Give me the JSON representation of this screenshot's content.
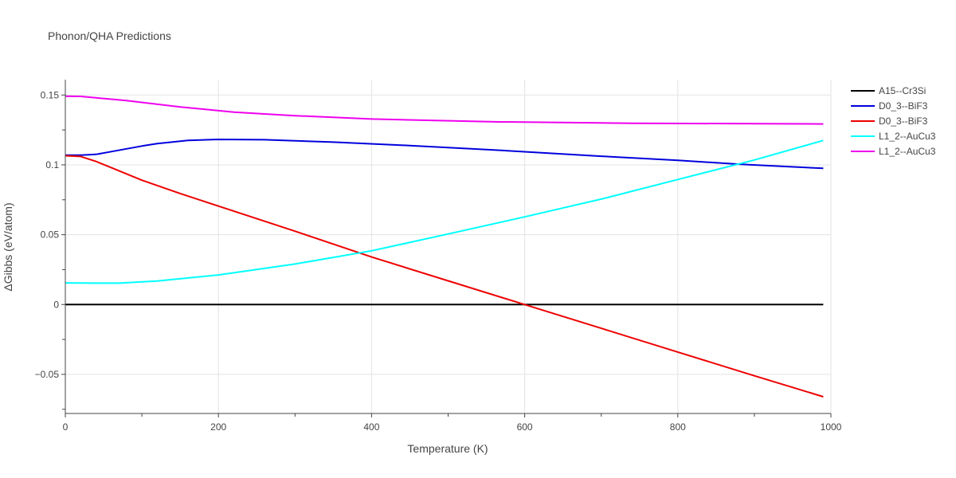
{
  "chart_data": {
    "type": "line",
    "title": "Phonon/QHA Predictions",
    "xlabel": "Temperature (K)",
    "ylabel": "ΔGibbs (eV/atom)",
    "xlim": [
      0,
      1000
    ],
    "ylim": [
      -0.078,
      0.161
    ],
    "grid": true,
    "legend_position": "right",
    "x_ticks": [
      {
        "value": 0,
        "label": "0"
      },
      {
        "value": 200,
        "label": "200"
      },
      {
        "value": 400,
        "label": "400"
      },
      {
        "value": 600,
        "label": "600"
      },
      {
        "value": 800,
        "label": "800"
      },
      {
        "value": 1000,
        "label": "1000"
      }
    ],
    "y_ticks": [
      {
        "value": -0.05,
        "label": "−0.05"
      },
      {
        "value": 0,
        "label": "0"
      },
      {
        "value": 0.05,
        "label": "0.05"
      },
      {
        "value": 0.1,
        "label": "0.1"
      },
      {
        "value": 0.15,
        "label": "0.15"
      }
    ],
    "series": [
      {
        "name": "A15--Cr3Si",
        "color": "#000000",
        "x": [
          0,
          100,
          200,
          300,
          400,
          500,
          600,
          700,
          800,
          900,
          990
        ],
        "y": [
          0,
          0,
          0,
          0,
          0,
          0,
          0,
          0,
          0,
          0,
          0
        ]
      },
      {
        "name": "D0_3--BiF3",
        "color": "#0000dd",
        "x": [
          0,
          20,
          40,
          60,
          80,
          100,
          120,
          160,
          200,
          260,
          350,
          450,
          560,
          700,
          800,
          880,
          990
        ],
        "y": [
          0.107,
          0.107,
          0.1075,
          0.1095,
          0.1115,
          0.1135,
          0.1152,
          0.1175,
          0.1182,
          0.118,
          0.1163,
          0.1138,
          0.1107,
          0.1062,
          0.1032,
          0.1005,
          0.0975
        ]
      },
      {
        "name": "D0_3--BiF3",
        "color": "#ee0000",
        "x": [
          0,
          20,
          40,
          60,
          100,
          150,
          200,
          300,
          400,
          500,
          600,
          700,
          800,
          900,
          990
        ],
        "y": [
          0.1065,
          0.106,
          0.1025,
          0.098,
          0.089,
          0.0795,
          0.0705,
          0.0525,
          0.034,
          0.017,
          0,
          -0.017,
          -0.034,
          -0.051,
          -0.066
        ]
      },
      {
        "name": "L1_2--AuCu3",
        "color": "#00ffff",
        "x": [
          0,
          40,
          70,
          120,
          200,
          300,
          400,
          500,
          600,
          700,
          800,
          900,
          990
        ],
        "y": [
          0.0155,
          0.0153,
          0.0153,
          0.0168,
          0.0212,
          0.029,
          0.0385,
          0.0505,
          0.0628,
          0.0755,
          0.0895,
          0.1035,
          0.1175
        ]
      },
      {
        "name": "L1_2--AuCu3",
        "color": "#ee00ee",
        "x": [
          0,
          20,
          40,
          80,
          150,
          220,
          300,
          400,
          560,
          740,
          990
        ],
        "y": [
          0.1492,
          0.149,
          0.148,
          0.146,
          0.1415,
          0.1378,
          0.1352,
          0.1328,
          0.1308,
          0.1298,
          0.1293
        ]
      }
    ]
  }
}
